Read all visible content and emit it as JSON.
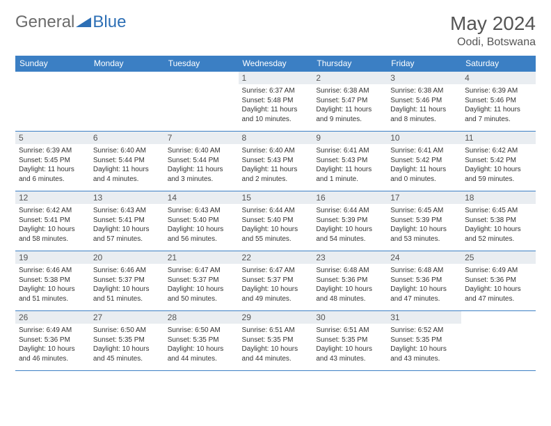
{
  "brand": {
    "left": "General",
    "right": "Blue"
  },
  "title": "May 2024",
  "location": "Oodi, Botswana",
  "table": {
    "header_bg": "#3b7fc4",
    "days": [
      "Sunday",
      "Monday",
      "Tuesday",
      "Wednesday",
      "Thursday",
      "Friday",
      "Saturday"
    ],
    "weeks": [
      [
        null,
        null,
        null,
        {
          "n": "1",
          "sunrise": "6:37 AM",
          "sunset": "5:48 PM",
          "daylight": "11 hours and 10 minutes."
        },
        {
          "n": "2",
          "sunrise": "6:38 AM",
          "sunset": "5:47 PM",
          "daylight": "11 hours and 9 minutes."
        },
        {
          "n": "3",
          "sunrise": "6:38 AM",
          "sunset": "5:46 PM",
          "daylight": "11 hours and 8 minutes."
        },
        {
          "n": "4",
          "sunrise": "6:39 AM",
          "sunset": "5:46 PM",
          "daylight": "11 hours and 7 minutes."
        }
      ],
      [
        {
          "n": "5",
          "sunrise": "6:39 AM",
          "sunset": "5:45 PM",
          "daylight": "11 hours and 6 minutes."
        },
        {
          "n": "6",
          "sunrise": "6:40 AM",
          "sunset": "5:44 PM",
          "daylight": "11 hours and 4 minutes."
        },
        {
          "n": "7",
          "sunrise": "6:40 AM",
          "sunset": "5:44 PM",
          "daylight": "11 hours and 3 minutes."
        },
        {
          "n": "8",
          "sunrise": "6:40 AM",
          "sunset": "5:43 PM",
          "daylight": "11 hours and 2 minutes."
        },
        {
          "n": "9",
          "sunrise": "6:41 AM",
          "sunset": "5:43 PM",
          "daylight": "11 hours and 1 minute."
        },
        {
          "n": "10",
          "sunrise": "6:41 AM",
          "sunset": "5:42 PM",
          "daylight": "11 hours and 0 minutes."
        },
        {
          "n": "11",
          "sunrise": "6:42 AM",
          "sunset": "5:42 PM",
          "daylight": "10 hours and 59 minutes."
        }
      ],
      [
        {
          "n": "12",
          "sunrise": "6:42 AM",
          "sunset": "5:41 PM",
          "daylight": "10 hours and 58 minutes."
        },
        {
          "n": "13",
          "sunrise": "6:43 AM",
          "sunset": "5:41 PM",
          "daylight": "10 hours and 57 minutes."
        },
        {
          "n": "14",
          "sunrise": "6:43 AM",
          "sunset": "5:40 PM",
          "daylight": "10 hours and 56 minutes."
        },
        {
          "n": "15",
          "sunrise": "6:44 AM",
          "sunset": "5:40 PM",
          "daylight": "10 hours and 55 minutes."
        },
        {
          "n": "16",
          "sunrise": "6:44 AM",
          "sunset": "5:39 PM",
          "daylight": "10 hours and 54 minutes."
        },
        {
          "n": "17",
          "sunrise": "6:45 AM",
          "sunset": "5:39 PM",
          "daylight": "10 hours and 53 minutes."
        },
        {
          "n": "18",
          "sunrise": "6:45 AM",
          "sunset": "5:38 PM",
          "daylight": "10 hours and 52 minutes."
        }
      ],
      [
        {
          "n": "19",
          "sunrise": "6:46 AM",
          "sunset": "5:38 PM",
          "daylight": "10 hours and 51 minutes."
        },
        {
          "n": "20",
          "sunrise": "6:46 AM",
          "sunset": "5:37 PM",
          "daylight": "10 hours and 51 minutes."
        },
        {
          "n": "21",
          "sunrise": "6:47 AM",
          "sunset": "5:37 PM",
          "daylight": "10 hours and 50 minutes."
        },
        {
          "n": "22",
          "sunrise": "6:47 AM",
          "sunset": "5:37 PM",
          "daylight": "10 hours and 49 minutes."
        },
        {
          "n": "23",
          "sunrise": "6:48 AM",
          "sunset": "5:36 PM",
          "daylight": "10 hours and 48 minutes."
        },
        {
          "n": "24",
          "sunrise": "6:48 AM",
          "sunset": "5:36 PM",
          "daylight": "10 hours and 47 minutes."
        },
        {
          "n": "25",
          "sunrise": "6:49 AM",
          "sunset": "5:36 PM",
          "daylight": "10 hours and 47 minutes."
        }
      ],
      [
        {
          "n": "26",
          "sunrise": "6:49 AM",
          "sunset": "5:36 PM",
          "daylight": "10 hours and 46 minutes."
        },
        {
          "n": "27",
          "sunrise": "6:50 AM",
          "sunset": "5:35 PM",
          "daylight": "10 hours and 45 minutes."
        },
        {
          "n": "28",
          "sunrise": "6:50 AM",
          "sunset": "5:35 PM",
          "daylight": "10 hours and 44 minutes."
        },
        {
          "n": "29",
          "sunrise": "6:51 AM",
          "sunset": "5:35 PM",
          "daylight": "10 hours and 44 minutes."
        },
        {
          "n": "30",
          "sunrise": "6:51 AM",
          "sunset": "5:35 PM",
          "daylight": "10 hours and 43 minutes."
        },
        {
          "n": "31",
          "sunrise": "6:52 AM",
          "sunset": "5:35 PM",
          "daylight": "10 hours and 43 minutes."
        },
        null
      ]
    ]
  },
  "labels": {
    "sunrise": "Sunrise:",
    "sunset": "Sunset:",
    "daylight": "Daylight:"
  }
}
